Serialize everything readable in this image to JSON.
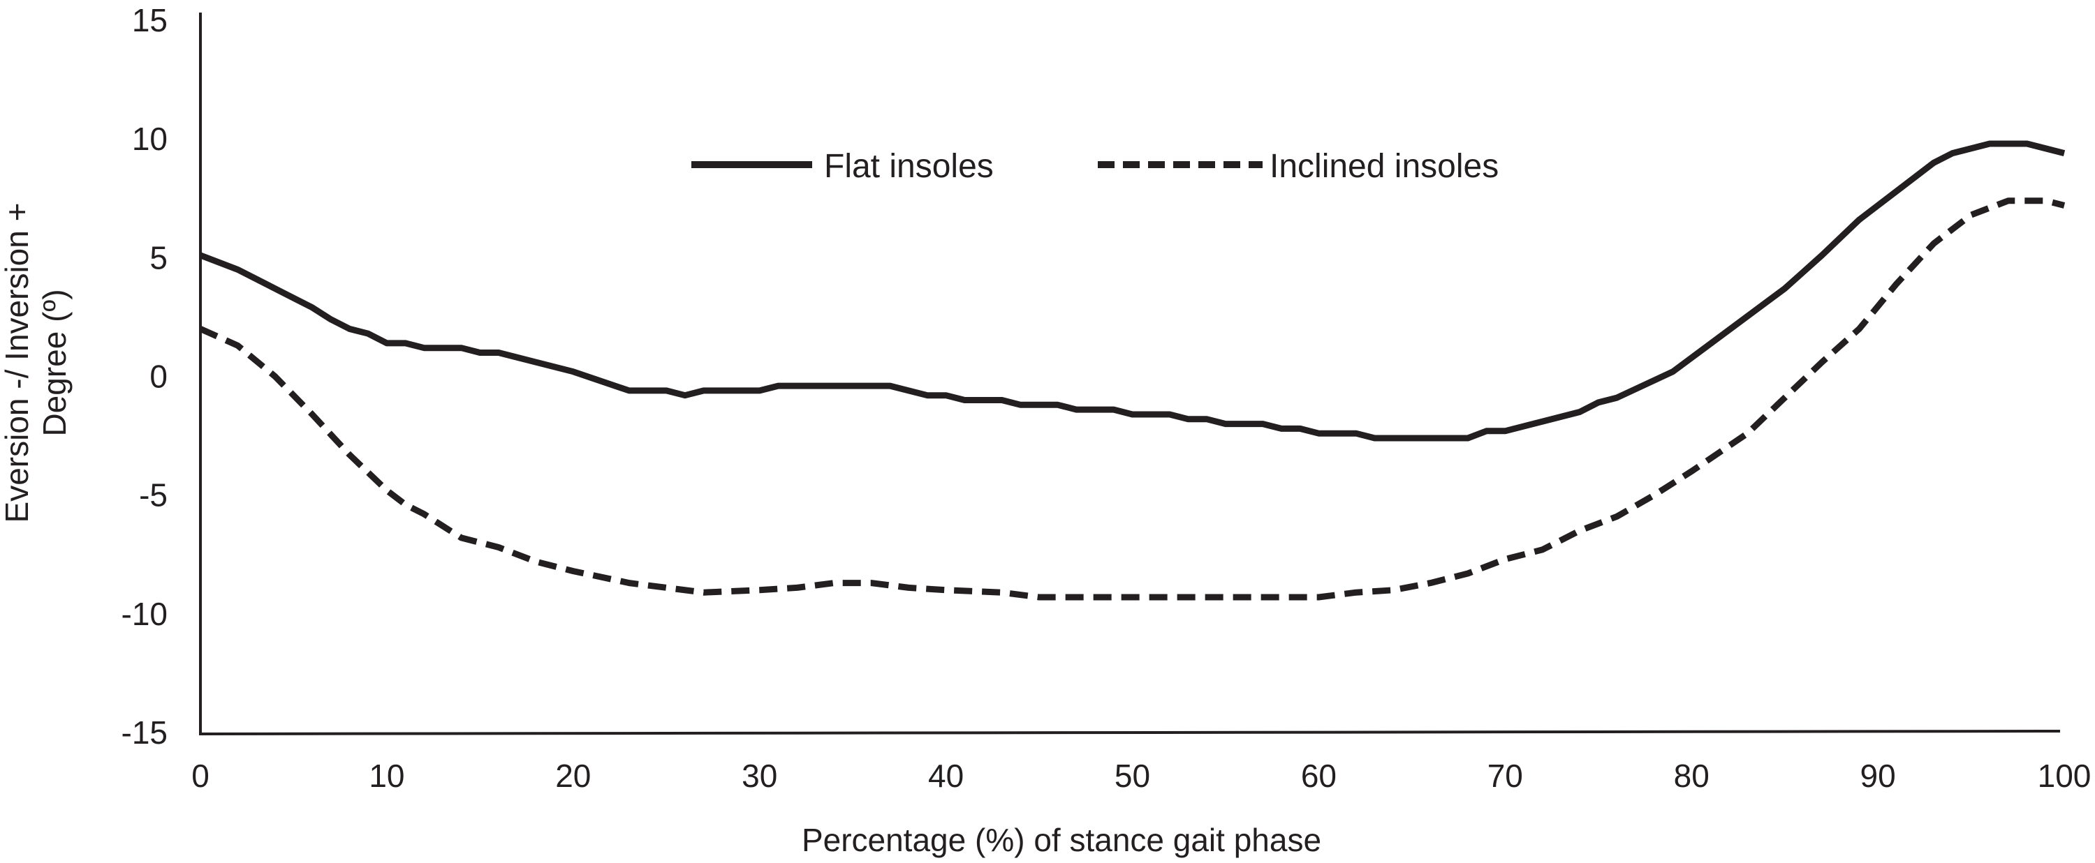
{
  "chart_data": {
    "type": "line",
    "title": "",
    "xlabel": "Percentage (%) of stance gait phase",
    "ylabel_lines": [
      "Eversion -/ Inversion +",
      "Degree (º)"
    ],
    "xlim": [
      0,
      100
    ],
    "ylim": [
      -15,
      15
    ],
    "xticks": [
      0,
      10,
      20,
      30,
      40,
      50,
      60,
      70,
      80,
      90,
      100
    ],
    "yticks": [
      15,
      10,
      5,
      0,
      -5,
      -10,
      -15
    ],
    "grid": false,
    "legend_placement": "top-center",
    "series": [
      {
        "name": "Flat insoles",
        "style": "solid",
        "color": "#231f20",
        "x": [
          0,
          2,
          4,
          5,
          6,
          7,
          8,
          9,
          10,
          11,
          12,
          14,
          15,
          16,
          20,
          23,
          25,
          26,
          27,
          30,
          31,
          37,
          39,
          40,
          41,
          43,
          44,
          46,
          47,
          49,
          50,
          52,
          53,
          54,
          55,
          57,
          58,
          59,
          60,
          62,
          63,
          68,
          69,
          70,
          74,
          75,
          76,
          79,
          85,
          86,
          87,
          89,
          93,
          94,
          96,
          98,
          100
        ],
        "y": [
          5.1,
          4.5,
          3.7,
          3.3,
          2.9,
          2.4,
          2.0,
          1.8,
          1.4,
          1.4,
          1.2,
          1.2,
          1.0,
          1.0,
          0.2,
          -0.6,
          -0.6,
          -0.8,
          -0.6,
          -0.6,
          -0.4,
          -0.4,
          -0.8,
          -0.8,
          -1.0,
          -1.0,
          -1.2,
          -1.2,
          -1.4,
          -1.4,
          -1.6,
          -1.6,
          -1.8,
          -1.8,
          -2.0,
          -2.0,
          -2.2,
          -2.2,
          -2.4,
          -2.4,
          -2.6,
          -2.6,
          -2.3,
          -2.3,
          -1.5,
          -1.1,
          -0.9,
          0.2,
          3.7,
          4.4,
          5.1,
          6.6,
          9.0,
          9.4,
          9.8,
          9.8,
          9.4
        ]
      },
      {
        "name": "Inclined insoles",
        "style": "dashed",
        "color": "#231f20",
        "x": [
          0,
          2,
          4,
          6,
          8,
          10,
          11,
          12,
          14,
          16,
          18,
          20,
          23,
          25,
          27,
          30,
          32,
          34,
          36,
          38,
          40,
          43,
          45,
          50,
          55,
          60,
          62,
          64,
          66,
          68,
          70,
          72,
          74,
          76,
          78,
          80,
          83,
          85,
          87,
          89,
          91,
          93,
          95,
          97,
          99,
          100
        ],
        "y": [
          2.0,
          1.3,
          0.0,
          -1.6,
          -3.3,
          -4.8,
          -5.4,
          -5.8,
          -6.8,
          -7.2,
          -7.8,
          -8.2,
          -8.7,
          -8.9,
          -9.1,
          -9.0,
          -8.9,
          -8.7,
          -8.7,
          -8.9,
          -9.0,
          -9.1,
          -9.3,
          -9.3,
          -9.3,
          -9.3,
          -9.1,
          -9.0,
          -8.7,
          -8.3,
          -7.7,
          -7.3,
          -6.5,
          -5.9,
          -5.0,
          -4.0,
          -2.4,
          -0.9,
          0.6,
          2.0,
          3.9,
          5.6,
          6.8,
          7.4,
          7.4,
          7.2
        ]
      }
    ]
  }
}
